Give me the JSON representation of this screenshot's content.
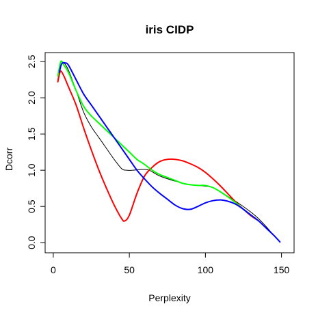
{
  "chart_data": {
    "type": "line",
    "title": "iris CIDP",
    "xlabel": "Perplexity",
    "ylabel": "Dcorr",
    "xlim": [
      0,
      150
    ],
    "ylim": [
      0,
      2.5
    ],
    "x_ticks": [
      0,
      50,
      100,
      150
    ],
    "y_ticks": [
      0.0,
      0.5,
      1.0,
      1.5,
      2.0,
      2.5
    ],
    "x_tick_labels": [
      "0",
      "50",
      "100",
      "150"
    ],
    "y_tick_labels": [
      "0.0",
      "0.5",
      "1.0",
      "1.5",
      "2.0",
      "2.5"
    ],
    "grid": false,
    "legend": "none",
    "series": [
      {
        "color": "#000000",
        "width": 1,
        "x": [
          3,
          5,
          7,
          10,
          15,
          20,
          25,
          30,
          35,
          40,
          45,
          48,
          52,
          58,
          63,
          70,
          80,
          90,
          95,
          100,
          105,
          110,
          120,
          130,
          135,
          140,
          145,
          149
        ],
        "y": [
          2.25,
          2.45,
          2.48,
          2.38,
          2.1,
          1.8,
          1.6,
          1.45,
          1.3,
          1.15,
          1.02,
          1.0,
          1.0,
          1.01,
          1.0,
          0.92,
          0.85,
          0.8,
          0.79,
          0.78,
          0.76,
          0.7,
          0.57,
          0.42,
          0.33,
          0.22,
          0.1,
          0.01
        ]
      },
      {
        "color": "#ff0000",
        "width": 2,
        "x": [
          3,
          4,
          5,
          7,
          10,
          15,
          20,
          25,
          30,
          35,
          40,
          45,
          47,
          50,
          55,
          60,
          65,
          70,
          75,
          80,
          85,
          90,
          95,
          100,
          105,
          110,
          115,
          120,
          125,
          130,
          135
        ],
        "y": [
          2.22,
          2.32,
          2.37,
          2.3,
          2.15,
          1.9,
          1.58,
          1.28,
          1.0,
          0.75,
          0.52,
          0.33,
          0.3,
          0.38,
          0.68,
          0.92,
          1.04,
          1.12,
          1.15,
          1.15,
          1.13,
          1.09,
          1.04,
          0.97,
          0.88,
          0.78,
          0.67,
          0.56,
          0.46,
          0.37,
          0.3
        ]
      },
      {
        "color": "#00ff00",
        "width": 2,
        "x": [
          3,
          5,
          7,
          10,
          15,
          20,
          25,
          30,
          35,
          40,
          45,
          50,
          55,
          60,
          65,
          70,
          75,
          80,
          85,
          90,
          95,
          100,
          105,
          110,
          115,
          120,
          125,
          130,
          135
        ],
        "y": [
          2.3,
          2.5,
          2.45,
          2.35,
          2.1,
          1.88,
          1.75,
          1.65,
          1.55,
          1.45,
          1.35,
          1.25,
          1.15,
          1.08,
          1.0,
          0.94,
          0.9,
          0.86,
          0.82,
          0.8,
          0.79,
          0.79,
          0.76,
          0.7,
          0.63,
          0.55,
          0.46,
          0.38,
          0.3
        ]
      },
      {
        "color": "#0000ff",
        "width": 2,
        "x": [
          4,
          5,
          6,
          8,
          10,
          15,
          20,
          25,
          30,
          35,
          40,
          45,
          50,
          55,
          60,
          65,
          70,
          75,
          80,
          85,
          90,
          95,
          100,
          105,
          110,
          115,
          120,
          125,
          130,
          135,
          140,
          145,
          149
        ],
        "y": [
          2.35,
          2.44,
          2.48,
          2.48,
          2.45,
          2.25,
          2.05,
          1.9,
          1.75,
          1.6,
          1.45,
          1.3,
          1.15,
          1.0,
          0.88,
          0.77,
          0.68,
          0.6,
          0.52,
          0.47,
          0.46,
          0.5,
          0.55,
          0.58,
          0.59,
          0.57,
          0.53,
          0.46,
          0.38,
          0.3,
          0.2,
          0.1,
          0.01
        ]
      }
    ]
  }
}
